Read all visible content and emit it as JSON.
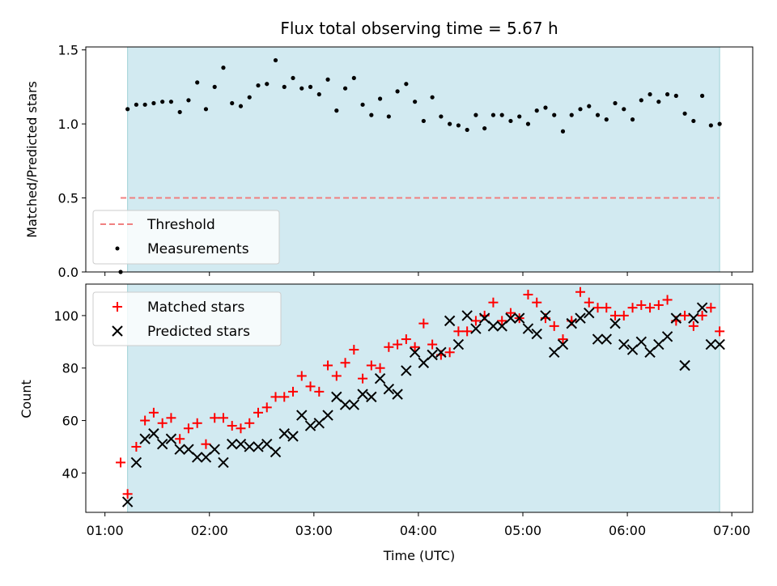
{
  "chart_data": [
    {
      "type": "scatter",
      "title": "Flux total observing time = 5.67 h",
      "ylabel": "Matched/Predicted stars",
      "ylim": [
        0,
        1.52
      ],
      "yticks": [
        "0.0",
        "0.5",
        "1.0",
        "1.5"
      ],
      "shaded_region": {
        "x_start": "01:13",
        "x_end": "06:53",
        "color": "#add8e6"
      },
      "threshold": {
        "name": "Threshold",
        "value": 0.5,
        "x_start": "01:09",
        "x_end": "06:53",
        "color": "#f08080"
      },
      "series": [
        {
          "name": "Measurements",
          "color": "#000000",
          "x": [
            "01:09",
            "01:13",
            "01:18",
            "01:23",
            "01:28",
            "01:33",
            "01:38",
            "01:43",
            "01:48",
            "01:53",
            "01:58",
            "02:03",
            "02:08",
            "02:13",
            "02:18",
            "02:23",
            "02:28",
            "02:33",
            "02:38",
            "02:43",
            "02:48",
            "02:53",
            "02:58",
            "03:03",
            "03:08",
            "03:13",
            "03:18",
            "03:23",
            "03:28",
            "03:33",
            "03:38",
            "03:43",
            "03:48",
            "03:53",
            "03:58",
            "04:03",
            "04:08",
            "04:13",
            "04:18",
            "04:23",
            "04:28",
            "04:33",
            "04:38",
            "04:43",
            "04:48",
            "04:53",
            "04:58",
            "05:03",
            "05:08",
            "05:13",
            "05:18",
            "05:23",
            "05:28",
            "05:33",
            "05:38",
            "05:43",
            "05:48",
            "05:53",
            "05:58",
            "06:03",
            "06:08",
            "06:13",
            "06:18",
            "06:23",
            "06:28",
            "06:33",
            "06:38",
            "06:43",
            "06:48",
            "06:53"
          ],
          "y": [
            0.0,
            1.1,
            1.13,
            1.13,
            1.14,
            1.15,
            1.15,
            1.08,
            1.16,
            1.28,
            1.1,
            1.25,
            1.38,
            1.14,
            1.12,
            1.18,
            1.26,
            1.27,
            1.43,
            1.25,
            1.31,
            1.24,
            1.25,
            1.2,
            1.3,
            1.09,
            1.24,
            1.31,
            1.13,
            1.06,
            1.17,
            1.05,
            1.22,
            1.27,
            1.15,
            1.02,
            1.18,
            1.05,
            1.0,
            0.99,
            0.96,
            1.06,
            0.97,
            1.06,
            1.06,
            1.02,
            1.05,
            1.0,
            1.09,
            1.11,
            1.06,
            0.95,
            1.06,
            1.1,
            1.12,
            1.06,
            1.03,
            1.14,
            1.1,
            1.03,
            1.16,
            1.2,
            1.15,
            1.2,
            1.19,
            1.07,
            1.02,
            1.19,
            0.99,
            1.0
          ]
        }
      ],
      "legend": {
        "placement": "lower-left",
        "entries": [
          "Threshold",
          "Measurements"
        ]
      }
    },
    {
      "type": "scatter",
      "xlabel": "Time (UTC)",
      "ylabel": "Count",
      "ylim": [
        25,
        112
      ],
      "yticks": [
        "40",
        "60",
        "80",
        "100"
      ],
      "xticks": [
        "01:00",
        "02:00",
        "03:00",
        "04:00",
        "05:00",
        "06:00",
        "07:00"
      ],
      "xlim": [
        "00:49",
        "07:12"
      ],
      "shaded_region": {
        "x_start": "01:13",
        "x_end": "06:53",
        "color": "#add8e6"
      },
      "series": [
        {
          "name": "Matched stars",
          "color": "#ff0000",
          "marker": "+",
          "x": [
            "01:09",
            "01:13",
            "01:18",
            "01:23",
            "01:28",
            "01:33",
            "01:38",
            "01:43",
            "01:48",
            "01:53",
            "01:58",
            "02:03",
            "02:08",
            "02:13",
            "02:18",
            "02:23",
            "02:28",
            "02:33",
            "02:38",
            "02:43",
            "02:48",
            "02:53",
            "02:58",
            "03:03",
            "03:08",
            "03:13",
            "03:18",
            "03:23",
            "03:28",
            "03:33",
            "03:38",
            "03:43",
            "03:48",
            "03:53",
            "03:58",
            "04:03",
            "04:08",
            "04:13",
            "04:18",
            "04:23",
            "04:28",
            "04:33",
            "04:38",
            "04:43",
            "04:48",
            "04:53",
            "04:58",
            "05:03",
            "05:08",
            "05:13",
            "05:18",
            "05:23",
            "05:28",
            "05:33",
            "05:38",
            "05:43",
            "05:48",
            "05:53",
            "05:58",
            "06:03",
            "06:08",
            "06:13",
            "06:18",
            "06:23",
            "06:28",
            "06:33",
            "06:38",
            "06:43",
            "06:48",
            "06:53"
          ],
          "y": [
            44,
            32,
            50,
            60,
            63,
            59,
            61,
            53,
            57,
            59,
            51,
            61,
            61,
            58,
            57,
            59,
            63,
            65,
            69,
            69,
            71,
            77,
            73,
            71,
            81,
            77,
            82,
            87,
            76,
            81,
            80,
            88,
            89,
            91,
            88,
            97,
            89,
            85,
            86,
            94,
            94,
            98,
            100,
            105,
            98,
            101,
            99,
            108,
            105,
            99,
            96,
            91,
            98,
            109,
            105,
            103,
            103,
            100,
            100,
            103,
            104,
            103,
            104,
            106,
            98,
            100,
            96,
            100,
            103,
            94
          ]
        },
        {
          "name": "Predicted stars",
          "color": "#000000",
          "marker": "x",
          "x": [
            "01:13",
            "01:18",
            "01:23",
            "01:28",
            "01:33",
            "01:38",
            "01:43",
            "01:48",
            "01:53",
            "01:58",
            "02:03",
            "02:08",
            "02:13",
            "02:18",
            "02:23",
            "02:28",
            "02:33",
            "02:38",
            "02:43",
            "02:48",
            "02:53",
            "02:58",
            "03:03",
            "03:08",
            "03:13",
            "03:18",
            "03:23",
            "03:28",
            "03:33",
            "03:38",
            "03:43",
            "03:48",
            "03:53",
            "03:58",
            "04:03",
            "04:08",
            "04:13",
            "04:18",
            "04:23",
            "04:28",
            "04:33",
            "04:38",
            "04:43",
            "04:48",
            "04:53",
            "04:58",
            "05:03",
            "05:08",
            "05:13",
            "05:18",
            "05:23",
            "05:28",
            "05:33",
            "05:38",
            "05:43",
            "05:48",
            "05:53",
            "05:58",
            "06:03",
            "06:08",
            "06:13",
            "06:18",
            "06:23",
            "06:28",
            "06:33",
            "06:38",
            "06:43",
            "06:48",
            "06:53"
          ],
          "y": [
            29,
            44,
            53,
            55,
            51,
            53,
            49,
            49,
            46,
            46,
            49,
            44,
            51,
            51,
            50,
            50,
            51,
            48,
            55,
            54,
            62,
            58,
            59,
            62,
            69,
            66,
            66,
            70,
            69,
            76,
            72,
            70,
            79,
            86,
            82,
            85,
            86,
            98,
            89,
            100,
            95,
            99,
            96,
            96,
            99,
            99,
            95,
            93,
            100,
            86,
            89,
            97,
            99,
            101,
            91,
            91,
            97,
            89,
            87,
            90,
            86,
            89,
            92,
            99,
            81,
            99,
            103,
            89,
            89
          ]
        }
      ],
      "legend": {
        "placement": "upper-left",
        "entries": [
          "Matched stars",
          "Predicted stars"
        ]
      }
    }
  ]
}
